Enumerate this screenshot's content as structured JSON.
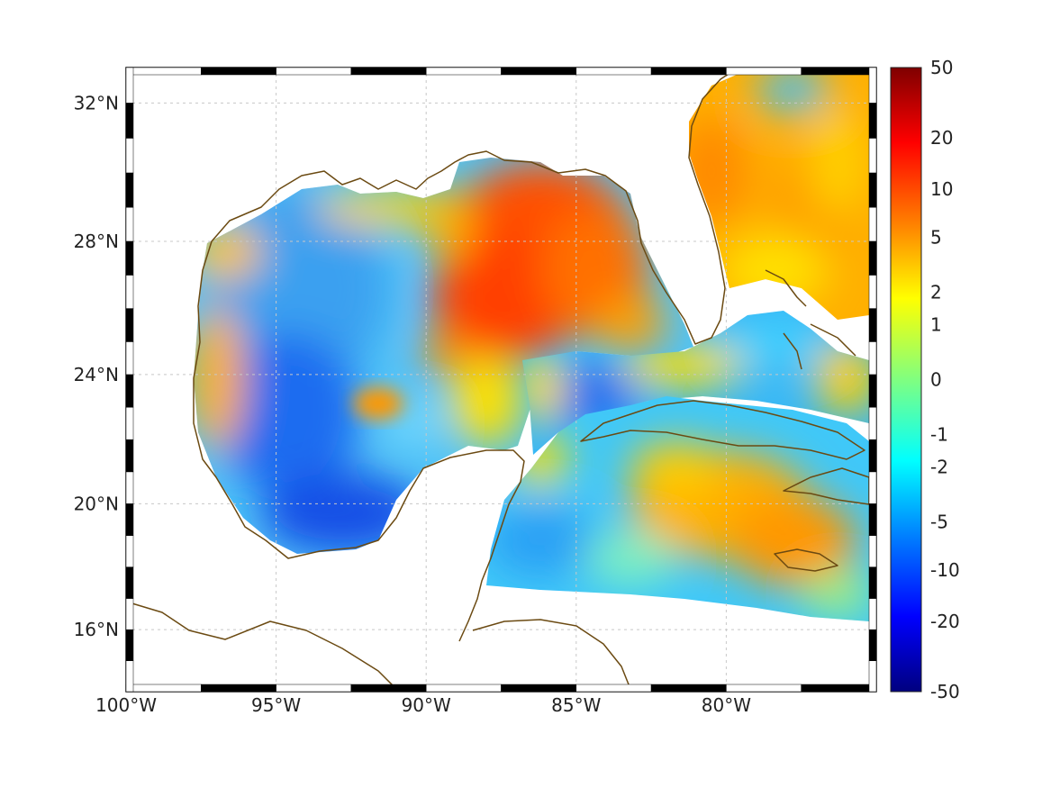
{
  "map": {
    "type": "filled-contour-map",
    "lon_range": [
      -100,
      -75
    ],
    "lat_range": [
      14,
      33
    ],
    "lon_ticks": [
      {
        "value": -100,
        "label": "100°W"
      },
      {
        "value": -95,
        "label": "95°W"
      },
      {
        "value": -90,
        "label": "90°W"
      },
      {
        "value": -85,
        "label": "85°W"
      },
      {
        "value": -80,
        "label": "80°W"
      }
    ],
    "lat_ticks": [
      {
        "value": 16,
        "label": "16°N"
      },
      {
        "value": 20,
        "label": "20°N"
      },
      {
        "value": 24,
        "label": "24°N"
      },
      {
        "value": 28,
        "label": "28°N"
      },
      {
        "value": 32,
        "label": "32°N"
      }
    ],
    "grid": true,
    "coastline_color": "#6b4a12",
    "colormap": "jet",
    "field_regions": [
      {
        "label": "northeastern Gulf high",
        "lon": -86.5,
        "lat": 27.5,
        "value": 10
      },
      {
        "label": "western Gulf low",
        "lon": -94.5,
        "lat": 23.5,
        "value": -5
      },
      {
        "label": "Bay of Campeche low",
        "lon": -93,
        "lat": 20,
        "value": -8
      },
      {
        "label": "central Gulf warm eddy",
        "lon": -91.5,
        "lat": 23,
        "value": 5
      },
      {
        "label": "Atlantic off Florida",
        "lon": -78,
        "lat": 30,
        "value": 5
      },
      {
        "label": "Caribbean near Jamaica",
        "lon": -79,
        "lat": 19.5,
        "value": 4
      }
    ]
  },
  "colorbar": {
    "ticks": [
      {
        "value": 50,
        "label": "50"
      },
      {
        "value": 20,
        "label": "20"
      },
      {
        "value": 10,
        "label": "10"
      },
      {
        "value": 5,
        "label": "5"
      },
      {
        "value": 2,
        "label": "2"
      },
      {
        "value": 1,
        "label": "1"
      },
      {
        "value": 0,
        "label": "0"
      },
      {
        "value": -1,
        "label": "-1"
      },
      {
        "value": -2,
        "label": "-2"
      },
      {
        "value": -5,
        "label": "-5"
      },
      {
        "value": -10,
        "label": "-10"
      },
      {
        "value": -20,
        "label": "-20"
      },
      {
        "value": -50,
        "label": "-50"
      }
    ],
    "colors": [
      "#7f0000",
      "#ff0000",
      "#ff8000",
      "#ffff00",
      "#80ff80",
      "#00ffff",
      "#0080ff",
      "#0000ff",
      "#00007f"
    ]
  }
}
